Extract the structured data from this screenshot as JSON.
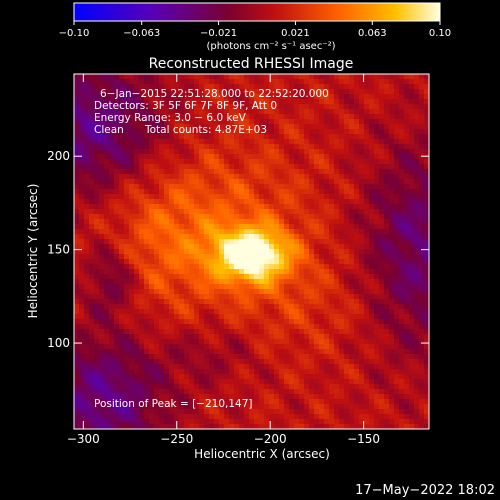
{
  "colorbar": {
    "ticks": [
      {
        "value": -0.1,
        "label": "−0.10"
      },
      {
        "value": -0.063,
        "label": "−0.063"
      },
      {
        "value": -0.021,
        "label": "−0.021"
      },
      {
        "value": 0.021,
        "label": "0.021"
      },
      {
        "value": 0.063,
        "label": "0.063"
      },
      {
        "value": 0.1,
        "label": "0.10"
      }
    ],
    "range": [
      -0.1,
      0.1
    ],
    "units": "(photons cm⁻² s⁻¹ asec⁻²)"
  },
  "info": {
    "time_range": "6−Jan−2015 22:51:28.000 to 22:52:20.000",
    "detectors": "Detectors: 3F 5F 6F 7F 8F 9F, Att 0",
    "energy": "Energy Range: 3.0 − 6.0 keV",
    "clean_label": "Clean",
    "total_counts": "Total counts: 4.87E+03",
    "peak": "Position of Peak = [−210,147]"
  },
  "footer": {
    "timestamp": "17−May−2022 18:02"
  },
  "chart_data": {
    "type": "heatmap",
    "title": "Reconstructed RHESSI Image",
    "xlabel": "Heliocentric X (arcsec)",
    "ylabel": "Heliocentric Y (arcsec)",
    "xlim": [
      -305,
      -115
    ],
    "ylim": [
      54,
      244
    ],
    "xticks": [
      {
        "value": -300,
        "label": "−300"
      },
      {
        "value": -250,
        "label": "−250"
      },
      {
        "value": -200,
        "label": "−200"
      },
      {
        "value": -150,
        "label": "−150"
      }
    ],
    "yticks": [
      {
        "value": 100,
        "label": "100"
      },
      {
        "value": 150,
        "label": "150"
      },
      {
        "value": 200,
        "label": "200"
      }
    ],
    "peak_position": [
      -210,
      147
    ],
    "grid": false
  }
}
